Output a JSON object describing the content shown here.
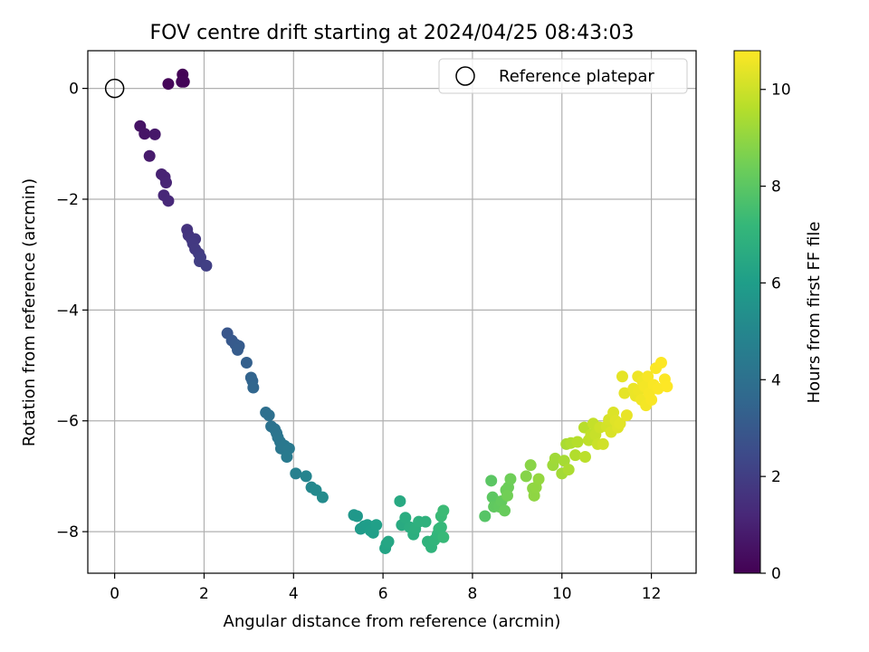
{
  "chart_data": {
    "type": "scatter",
    "title": "FOV centre drift starting at 2024/04/25 08:43:03",
    "xlabel": "Angular distance from reference (arcmin)",
    "ylabel": "Rotation from reference (arcmin)",
    "xlim": [
      -0.6,
      13.0
    ],
    "ylim": [
      -8.75,
      0.68
    ],
    "x_ticks": [
      "0",
      "2",
      "4",
      "6",
      "8",
      "10",
      "12"
    ],
    "y_ticks": [
      "0",
      "−2",
      "−4",
      "−6",
      "−8"
    ],
    "grid": true,
    "legend": {
      "placement": "top-right",
      "label": "Reference platepar"
    },
    "reference_point": {
      "x": 0,
      "y": 0
    },
    "colorbar": {
      "label": "Hours from first FF file",
      "range": [
        0,
        10.8
      ],
      "ticks": [
        "0",
        "2",
        "4",
        "6",
        "8",
        "10"
      ],
      "colormap": "viridis",
      "colors": [
        "#440154",
        "#482878",
        "#3e4989",
        "#31688e",
        "#26828e",
        "#1f9e89",
        "#35b779",
        "#6ece58",
        "#b5de2b",
        "#fde725"
      ]
    },
    "points": [
      {
        "x": 1.52,
        "y": 0.25,
        "t": 0.05
      },
      {
        "x": 1.55,
        "y": 0.12,
        "t": 0.1
      },
      {
        "x": 1.5,
        "y": 0.12,
        "t": 0.12
      },
      {
        "x": 1.2,
        "y": 0.08,
        "t": 0.15
      },
      {
        "x": 0.57,
        "y": -0.68,
        "t": 0.55
      },
      {
        "x": 0.67,
        "y": -0.82,
        "t": 0.6
      },
      {
        "x": 0.9,
        "y": -0.83,
        "t": 0.7
      },
      {
        "x": 0.78,
        "y": -1.22,
        "t": 0.8
      },
      {
        "x": 1.05,
        "y": -1.55,
        "t": 1.0
      },
      {
        "x": 1.12,
        "y": -1.6,
        "t": 1.05
      },
      {
        "x": 1.15,
        "y": -1.7,
        "t": 1.1
      },
      {
        "x": 1.1,
        "y": -1.93,
        "t": 1.2
      },
      {
        "x": 1.2,
        "y": -2.03,
        "t": 1.25
      },
      {
        "x": 1.62,
        "y": -2.55,
        "t": 1.6
      },
      {
        "x": 1.65,
        "y": -2.65,
        "t": 1.65
      },
      {
        "x": 1.72,
        "y": -2.72,
        "t": 1.7
      },
      {
        "x": 1.8,
        "y": -2.72,
        "t": 1.75
      },
      {
        "x": 1.75,
        "y": -2.8,
        "t": 1.8
      },
      {
        "x": 1.8,
        "y": -2.9,
        "t": 1.85
      },
      {
        "x": 1.88,
        "y": -2.98,
        "t": 1.9
      },
      {
        "x": 1.92,
        "y": -3.05,
        "t": 1.95
      },
      {
        "x": 1.9,
        "y": -3.12,
        "t": 2.0
      },
      {
        "x": 2.05,
        "y": -3.2,
        "t": 2.05
      },
      {
        "x": 2.52,
        "y": -4.42,
        "t": 2.9
      },
      {
        "x": 2.62,
        "y": -4.55,
        "t": 3.0
      },
      {
        "x": 2.7,
        "y": -4.62,
        "t": 3.05
      },
      {
        "x": 2.78,
        "y": -4.65,
        "t": 3.1
      },
      {
        "x": 2.75,
        "y": -4.72,
        "t": 3.15
      },
      {
        "x": 2.95,
        "y": -4.95,
        "t": 3.3
      },
      {
        "x": 3.05,
        "y": -5.22,
        "t": 3.45
      },
      {
        "x": 3.08,
        "y": -5.28,
        "t": 3.5
      },
      {
        "x": 3.1,
        "y": -5.4,
        "t": 3.55
      },
      {
        "x": 3.38,
        "y": -5.85,
        "t": 3.9
      },
      {
        "x": 3.45,
        "y": -5.9,
        "t": 3.95
      },
      {
        "x": 3.5,
        "y": -6.1,
        "t": 4.05
      },
      {
        "x": 3.58,
        "y": -6.15,
        "t": 4.1
      },
      {
        "x": 3.62,
        "y": -6.22,
        "t": 4.15
      },
      {
        "x": 3.65,
        "y": -6.3,
        "t": 4.2
      },
      {
        "x": 3.7,
        "y": -6.38,
        "t": 4.25
      },
      {
        "x": 3.72,
        "y": -6.5,
        "t": 4.3
      },
      {
        "x": 3.8,
        "y": -6.45,
        "t": 4.35
      },
      {
        "x": 3.9,
        "y": -6.5,
        "t": 4.4
      },
      {
        "x": 3.85,
        "y": -6.65,
        "t": 4.45
      },
      {
        "x": 4.05,
        "y": -6.95,
        "t": 4.7
      },
      {
        "x": 4.28,
        "y": -7.0,
        "t": 4.9
      },
      {
        "x": 4.4,
        "y": -7.2,
        "t": 5.0
      },
      {
        "x": 4.5,
        "y": -7.25,
        "t": 5.1
      },
      {
        "x": 4.65,
        "y": -7.38,
        "t": 5.2
      },
      {
        "x": 5.35,
        "y": -7.7,
        "t": 5.7
      },
      {
        "x": 5.42,
        "y": -7.72,
        "t": 5.75
      },
      {
        "x": 5.5,
        "y": -7.95,
        "t": 5.85
      },
      {
        "x": 5.58,
        "y": -7.9,
        "t": 5.9
      },
      {
        "x": 5.65,
        "y": -7.88,
        "t": 5.95
      },
      {
        "x": 5.72,
        "y": -7.98,
        "t": 6.0
      },
      {
        "x": 5.78,
        "y": -8.02,
        "t": 6.05
      },
      {
        "x": 5.85,
        "y": -7.88,
        "t": 6.1
      },
      {
        "x": 6.05,
        "y": -8.3,
        "t": 6.3
      },
      {
        "x": 6.08,
        "y": -8.22,
        "t": 6.35
      },
      {
        "x": 6.12,
        "y": -8.18,
        "t": 6.4
      },
      {
        "x": 6.38,
        "y": -7.45,
        "t": 6.55
      },
      {
        "x": 6.42,
        "y": -7.88,
        "t": 6.6
      },
      {
        "x": 6.5,
        "y": -7.75,
        "t": 6.65
      },
      {
        "x": 6.6,
        "y": -7.92,
        "t": 6.7
      },
      {
        "x": 6.68,
        "y": -8.05,
        "t": 6.75
      },
      {
        "x": 6.72,
        "y": -7.95,
        "t": 6.8
      },
      {
        "x": 6.8,
        "y": -7.82,
        "t": 6.85
      },
      {
        "x": 6.95,
        "y": -7.82,
        "t": 6.9
      },
      {
        "x": 7.0,
        "y": -8.18,
        "t": 6.95
      },
      {
        "x": 7.08,
        "y": -8.28,
        "t": 7.0
      },
      {
        "x": 7.15,
        "y": -8.15,
        "t": 7.05
      },
      {
        "x": 7.22,
        "y": -8.05,
        "t": 7.1
      },
      {
        "x": 7.25,
        "y": -7.95,
        "t": 7.15
      },
      {
        "x": 7.3,
        "y": -7.92,
        "t": 7.2
      },
      {
        "x": 7.35,
        "y": -8.1,
        "t": 7.25
      },
      {
        "x": 7.3,
        "y": -7.72,
        "t": 7.3
      },
      {
        "x": 7.35,
        "y": -7.62,
        "t": 7.35
      },
      {
        "x": 8.28,
        "y": -7.72,
        "t": 7.9
      },
      {
        "x": 8.42,
        "y": -7.08,
        "t": 8.0
      },
      {
        "x": 8.45,
        "y": -7.38,
        "t": 8.05
      },
      {
        "x": 8.48,
        "y": -7.55,
        "t": 8.1
      },
      {
        "x": 8.6,
        "y": -7.55,
        "t": 8.15
      },
      {
        "x": 8.65,
        "y": -7.45,
        "t": 8.2
      },
      {
        "x": 8.72,
        "y": -7.62,
        "t": 8.25
      },
      {
        "x": 8.75,
        "y": -7.25,
        "t": 8.3
      },
      {
        "x": 8.8,
        "y": -7.2,
        "t": 8.35
      },
      {
        "x": 8.85,
        "y": -7.05,
        "t": 8.4
      },
      {
        "x": 8.78,
        "y": -7.35,
        "t": 8.45
      },
      {
        "x": 9.2,
        "y": -7.0,
        "t": 8.8
      },
      {
        "x": 9.3,
        "y": -6.8,
        "t": 8.85
      },
      {
        "x": 9.35,
        "y": -7.22,
        "t": 8.9
      },
      {
        "x": 9.38,
        "y": -7.35,
        "t": 8.95
      },
      {
        "x": 9.42,
        "y": -7.2,
        "t": 9.0
      },
      {
        "x": 9.48,
        "y": -7.05,
        "t": 9.05
      },
      {
        "x": 9.8,
        "y": -6.8,
        "t": 9.2
      },
      {
        "x": 9.85,
        "y": -6.68,
        "t": 9.25
      },
      {
        "x": 10.0,
        "y": -6.95,
        "t": 9.3
      },
      {
        "x": 10.05,
        "y": -6.72,
        "t": 9.35
      },
      {
        "x": 10.1,
        "y": -6.42,
        "t": 9.4
      },
      {
        "x": 10.15,
        "y": -6.88,
        "t": 9.45
      },
      {
        "x": 10.2,
        "y": -6.4,
        "t": 9.5
      },
      {
        "x": 10.3,
        "y": -6.62,
        "t": 9.55
      },
      {
        "x": 10.35,
        "y": -6.38,
        "t": 9.6
      },
      {
        "x": 10.5,
        "y": -6.12,
        "t": 9.65
      },
      {
        "x": 10.52,
        "y": -6.65,
        "t": 9.7
      },
      {
        "x": 10.6,
        "y": -6.35,
        "t": 9.75
      },
      {
        "x": 10.65,
        "y": -6.25,
        "t": 9.8
      },
      {
        "x": 10.7,
        "y": -6.05,
        "t": 9.85
      },
      {
        "x": 10.75,
        "y": -6.25,
        "t": 9.9
      },
      {
        "x": 10.8,
        "y": -6.42,
        "t": 9.95
      },
      {
        "x": 10.85,
        "y": -6.12,
        "t": 10.0
      },
      {
        "x": 10.92,
        "y": -6.42,
        "t": 10.05
      },
      {
        "x": 11.0,
        "y": -6.1,
        "t": 10.1
      },
      {
        "x": 11.05,
        "y": -5.98,
        "t": 10.15
      },
      {
        "x": 11.1,
        "y": -6.2,
        "t": 10.2
      },
      {
        "x": 11.15,
        "y": -5.85,
        "t": 10.25
      },
      {
        "x": 11.2,
        "y": -6.0,
        "t": 10.3
      },
      {
        "x": 11.25,
        "y": -6.12,
        "t": 10.3
      },
      {
        "x": 11.3,
        "y": -6.05,
        "t": 10.35
      },
      {
        "x": 11.35,
        "y": -5.2,
        "t": 10.4
      },
      {
        "x": 11.4,
        "y": -5.5,
        "t": 10.4
      },
      {
        "x": 11.45,
        "y": -5.9,
        "t": 10.45
      },
      {
        "x": 11.6,
        "y": -5.42,
        "t": 10.5
      },
      {
        "x": 11.65,
        "y": -5.55,
        "t": 10.5
      },
      {
        "x": 11.7,
        "y": -5.2,
        "t": 10.55
      },
      {
        "x": 11.72,
        "y": -5.45,
        "t": 10.55
      },
      {
        "x": 11.78,
        "y": -5.62,
        "t": 10.6
      },
      {
        "x": 11.8,
        "y": -5.28,
        "t": 10.6
      },
      {
        "x": 11.85,
        "y": -5.38,
        "t": 10.65
      },
      {
        "x": 11.88,
        "y": -5.72,
        "t": 10.65
      },
      {
        "x": 11.92,
        "y": -5.2,
        "t": 10.7
      },
      {
        "x": 11.95,
        "y": -5.5,
        "t": 10.7
      },
      {
        "x": 12.0,
        "y": -5.62,
        "t": 10.72
      },
      {
        "x": 12.05,
        "y": -5.35,
        "t": 10.74
      },
      {
        "x": 12.1,
        "y": -5.05,
        "t": 10.75
      },
      {
        "x": 12.15,
        "y": -5.42,
        "t": 10.76
      },
      {
        "x": 12.22,
        "y": -4.95,
        "t": 10.78
      },
      {
        "x": 12.3,
        "y": -5.25,
        "t": 10.79
      },
      {
        "x": 12.35,
        "y": -5.38,
        "t": 10.8
      }
    ]
  }
}
